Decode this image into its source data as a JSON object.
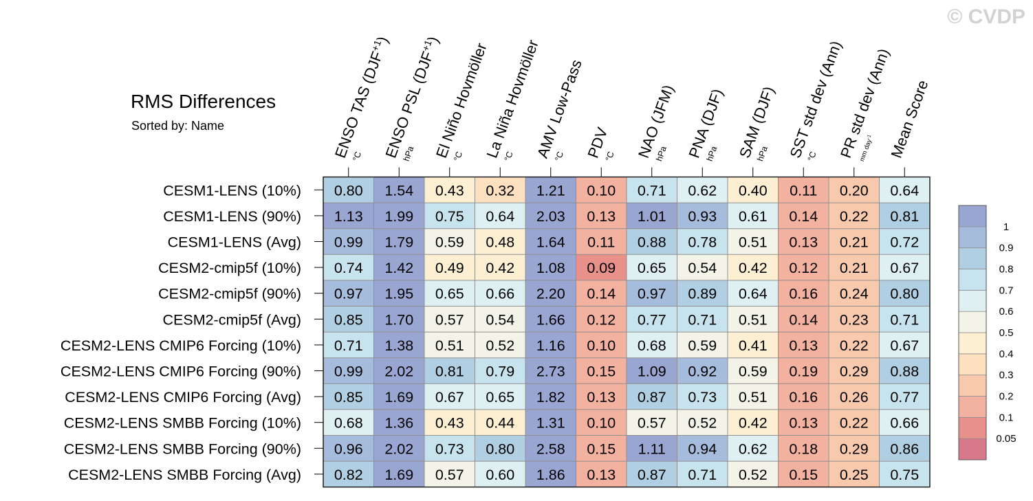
{
  "watermark": "© CVDP",
  "chart_data": {
    "type": "heatmap",
    "title": "RMS Differences",
    "subtitle": "Sorted by: Name",
    "columns": [
      {
        "name": "ENSO TAS (DJF+1)",
        "unit": "°C"
      },
      {
        "name": "ENSO PSL (DJF+1)",
        "unit": "hPa"
      },
      {
        "name": "El Niño Hovmöller",
        "unit": "°C"
      },
      {
        "name": "La Niña Hovmöller",
        "unit": "°C"
      },
      {
        "name": "AMV Low-Pass",
        "unit": "°C"
      },
      {
        "name": "PDV",
        "unit": "°C"
      },
      {
        "name": "NAO (JFM)",
        "unit": "hPa"
      },
      {
        "name": "PNA (DJF)",
        "unit": "hPa"
      },
      {
        "name": "SAM (DJF)",
        "unit": "hPa"
      },
      {
        "name": "SST std dev (Ann)",
        "unit": "°C"
      },
      {
        "name": "PR std dev (Ann)",
        "unit": "mm day-1"
      },
      {
        "name": "Mean Score",
        "unit": ""
      }
    ],
    "rows": [
      "CESM1-LENS (10%)",
      "CESM1-LENS (90%)",
      "CESM1-LENS (Avg)",
      "CESM2-cmip5f (10%)",
      "CESM2-cmip5f (90%)",
      "CESM2-cmip5f (Avg)",
      "CESM2-LENS CMIP6 Forcing (10%)",
      "CESM2-LENS CMIP6 Forcing (90%)",
      "CESM2-LENS CMIP6 Forcing (Avg)",
      "CESM2-LENS SMBB Forcing (10%)",
      "CESM2-LENS SMBB Forcing (90%)",
      "CESM2-LENS SMBB Forcing (Avg)"
    ],
    "values": [
      [
        "0.80",
        "1.54",
        "0.43",
        "0.32",
        "1.21",
        "0.10",
        "0.71",
        "0.62",
        "0.40",
        "0.11",
        "0.20",
        "0.64"
      ],
      [
        "1.13",
        "1.99",
        "0.75",
        "0.64",
        "2.03",
        "0.13",
        "1.01",
        "0.93",
        "0.61",
        "0.14",
        "0.22",
        "0.81"
      ],
      [
        "0.99",
        "1.79",
        "0.59",
        "0.48",
        "1.64",
        "0.11",
        "0.88",
        "0.78",
        "0.51",
        "0.13",
        "0.21",
        "0.72"
      ],
      [
        "0.74",
        "1.42",
        "0.49",
        "0.42",
        "1.08",
        "0.09",
        "0.65",
        "0.54",
        "0.42",
        "0.12",
        "0.21",
        "0.67"
      ],
      [
        "0.97",
        "1.95",
        "0.65",
        "0.66",
        "2.20",
        "0.14",
        "0.97",
        "0.89",
        "0.64",
        "0.16",
        "0.24",
        "0.80"
      ],
      [
        "0.85",
        "1.70",
        "0.57",
        "0.54",
        "1.66",
        "0.12",
        "0.77",
        "0.71",
        "0.51",
        "0.14",
        "0.23",
        "0.71"
      ],
      [
        "0.71",
        "1.38",
        "0.51",
        "0.52",
        "1.16",
        "0.10",
        "0.68",
        "0.59",
        "0.41",
        "0.13",
        "0.22",
        "0.67"
      ],
      [
        "0.99",
        "2.02",
        "0.81",
        "0.79",
        "2.73",
        "0.15",
        "1.09",
        "0.92",
        "0.59",
        "0.19",
        "0.29",
        "0.88"
      ],
      [
        "0.85",
        "1.69",
        "0.67",
        "0.65",
        "1.82",
        "0.13",
        "0.87",
        "0.73",
        "0.51",
        "0.16",
        "0.26",
        "0.77"
      ],
      [
        "0.68",
        "1.36",
        "0.43",
        "0.44",
        "1.31",
        "0.10",
        "0.57",
        "0.52",
        "0.42",
        "0.13",
        "0.22",
        "0.66"
      ],
      [
        "0.96",
        "2.02",
        "0.73",
        "0.80",
        "2.58",
        "0.15",
        "1.11",
        "0.94",
        "0.62",
        "0.18",
        "0.29",
        "0.86"
      ],
      [
        "0.82",
        "1.69",
        "0.57",
        "0.60",
        "1.86",
        "0.13",
        "0.87",
        "0.71",
        "0.52",
        "0.15",
        "0.25",
        "0.75"
      ]
    ],
    "colorbar": {
      "levels": [
        "0.05",
        "0.1",
        "0.2",
        "0.3",
        "0.4",
        "0.5",
        "0.6",
        "0.7",
        "0.8",
        "0.9",
        "1"
      ],
      "colors": [
        "#d7798b",
        "#e8908a",
        "#f3b1a0",
        "#f9c9ad",
        "#fde0bf",
        "#fcefd2",
        "#f4f3e8",
        "#dff0f3",
        "#c7e3ed",
        "#b0cfe3",
        "#a6bcdc",
        "#9aa6d2"
      ]
    }
  }
}
